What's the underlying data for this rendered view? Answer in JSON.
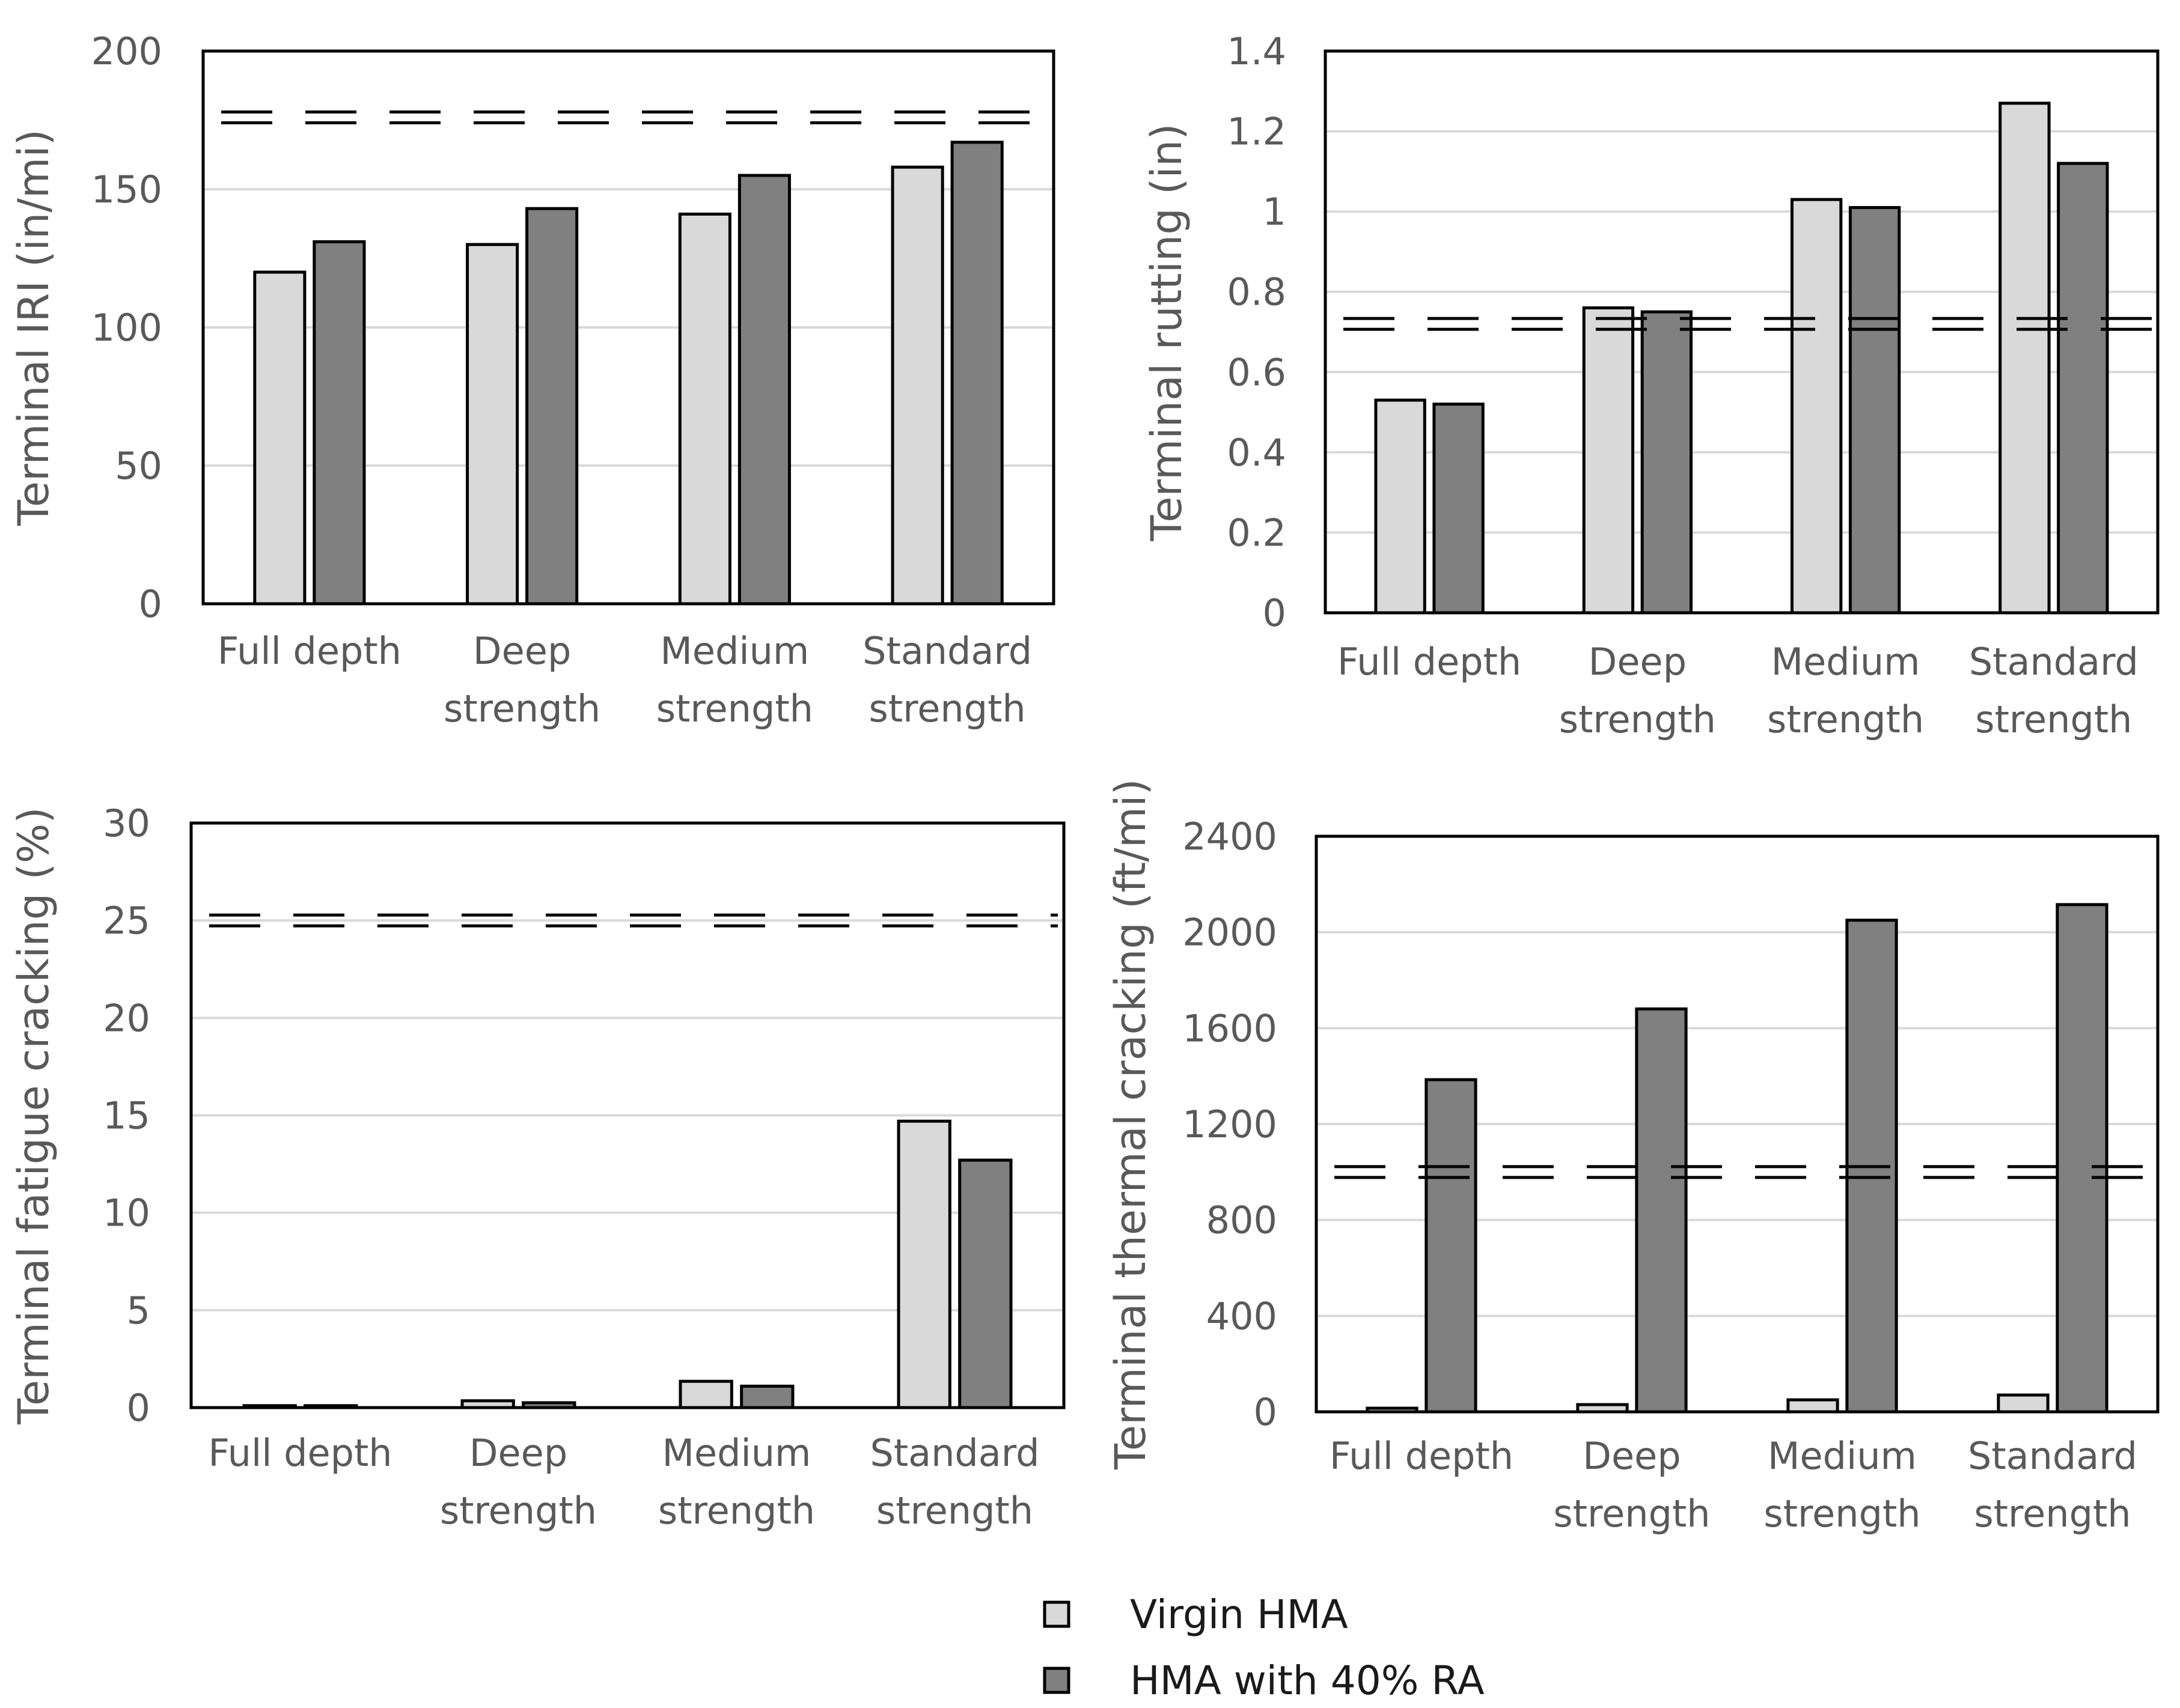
{
  "chart_data": [
    {
      "type": "bar",
      "panel": "top-left",
      "categories": [
        [
          "Full depth"
        ],
        [
          "Deep",
          "strength"
        ],
        [
          "Medium",
          "strength"
        ],
        [
          "Standard",
          "strength"
        ]
      ],
      "series": [
        {
          "name": "Virgin HMA",
          "values": [
            120,
            130,
            141,
            158
          ]
        },
        {
          "name": "HMA with 40% RA",
          "values": [
            131,
            143,
            155,
            167
          ]
        }
      ],
      "ylabel": "Terminal IRI (in/mi)",
      "ylim": [
        0,
        200
      ],
      "yticks": [
        "0",
        "50",
        "100",
        "150",
        "200"
      ],
      "threshold": 176,
      "grid": true
    },
    {
      "type": "bar",
      "panel": "top-right",
      "categories": [
        [
          "Full depth"
        ],
        [
          "Deep",
          "strength"
        ],
        [
          "Medium",
          "strength"
        ],
        [
          "Standard",
          "strength"
        ]
      ],
      "series": [
        {
          "name": "Virgin HMA",
          "values": [
            0.53,
            0.76,
            1.03,
            1.27
          ]
        },
        {
          "name": "HMA with 40% RA",
          "values": [
            0.52,
            0.75,
            1.01,
            1.12
          ]
        }
      ],
      "ylabel": "Terminal rutting (in)",
      "ylim": [
        0,
        1.4
      ],
      "yticks": [
        "0",
        "0.2",
        "0.4",
        "0.6",
        "0.8",
        "1",
        "1.2",
        "1.4"
      ],
      "threshold": 0.72,
      "grid": true
    },
    {
      "type": "bar",
      "panel": "bottom-left",
      "categories": [
        [
          "Full depth"
        ],
        [
          "Deep",
          "strength"
        ],
        [
          "Medium",
          "strength"
        ],
        [
          "Standard",
          "strength"
        ]
      ],
      "series": [
        {
          "name": "Virgin HMA",
          "values": [
            0.1,
            0.35,
            1.35,
            14.7
          ]
        },
        {
          "name": "HMA with 40% RA",
          "values": [
            0.1,
            0.25,
            1.1,
            12.7
          ]
        }
      ],
      "ylabel": "Terminal fatigue cracking (%)",
      "ylim": [
        0,
        30
      ],
      "yticks": [
        "0",
        "5",
        "10",
        "15",
        "20",
        "25",
        "30"
      ],
      "threshold": 25,
      "grid": true
    },
    {
      "type": "bar",
      "panel": "bottom-right",
      "categories": [
        [
          "Full depth"
        ],
        [
          "Deep",
          "strength"
        ],
        [
          "Medium",
          "strength"
        ],
        [
          "Standard",
          "strength"
        ]
      ],
      "series": [
        {
          "name": "Virgin HMA",
          "values": [
            15,
            30,
            50,
            70
          ]
        },
        {
          "name": "HMA with 40% RA",
          "values": [
            1385,
            1680,
            2050,
            2115
          ]
        }
      ],
      "ylabel": "Terminal thermal cracking (ft/mi)",
      "ylim": [
        0,
        2400
      ],
      "yticks": [
        "0",
        "400",
        "800",
        "1200",
        "1600",
        "2000",
        "2400"
      ],
      "threshold": 1000,
      "grid": true
    }
  ],
  "legend": {
    "items": [
      {
        "label": "Virgin HMA",
        "color": "#d9d9d9"
      },
      {
        "label": "HMA with 40% RA",
        "color": "#808080"
      }
    ]
  },
  "colors": {
    "virgin": "#d9d9d9",
    "ra": "#808080",
    "outline": "#000000",
    "grid": "#d9d9d9",
    "text": "#595959"
  }
}
